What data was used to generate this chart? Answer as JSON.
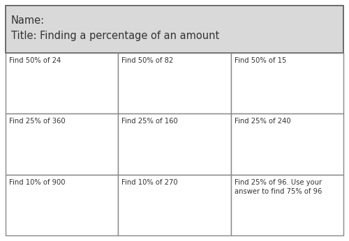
{
  "header_line1": "Name:",
  "header_line2": "Title: Finding a percentage of an amount",
  "header_bg": "#d9d9d9",
  "header_border": "#555555",
  "cell_bg": "#ffffff",
  "cell_border": "#888888",
  "text_color": "#333333",
  "cells": [
    [
      "Find 50% of 24",
      "Find 50% of 82",
      "Find 50% of 15"
    ],
    [
      "Find 25% of 360",
      "Find 25% of 160",
      "Find 25% of 240"
    ],
    [
      "Find 10% of 900",
      "Find 10% of 270",
      "Find 25% of 96. Use your\nanswer to find 75% of 96"
    ]
  ],
  "font_size_header": 10.5,
  "font_size_cell": 7.2,
  "fig_width": 5.0,
  "fig_height": 3.46
}
